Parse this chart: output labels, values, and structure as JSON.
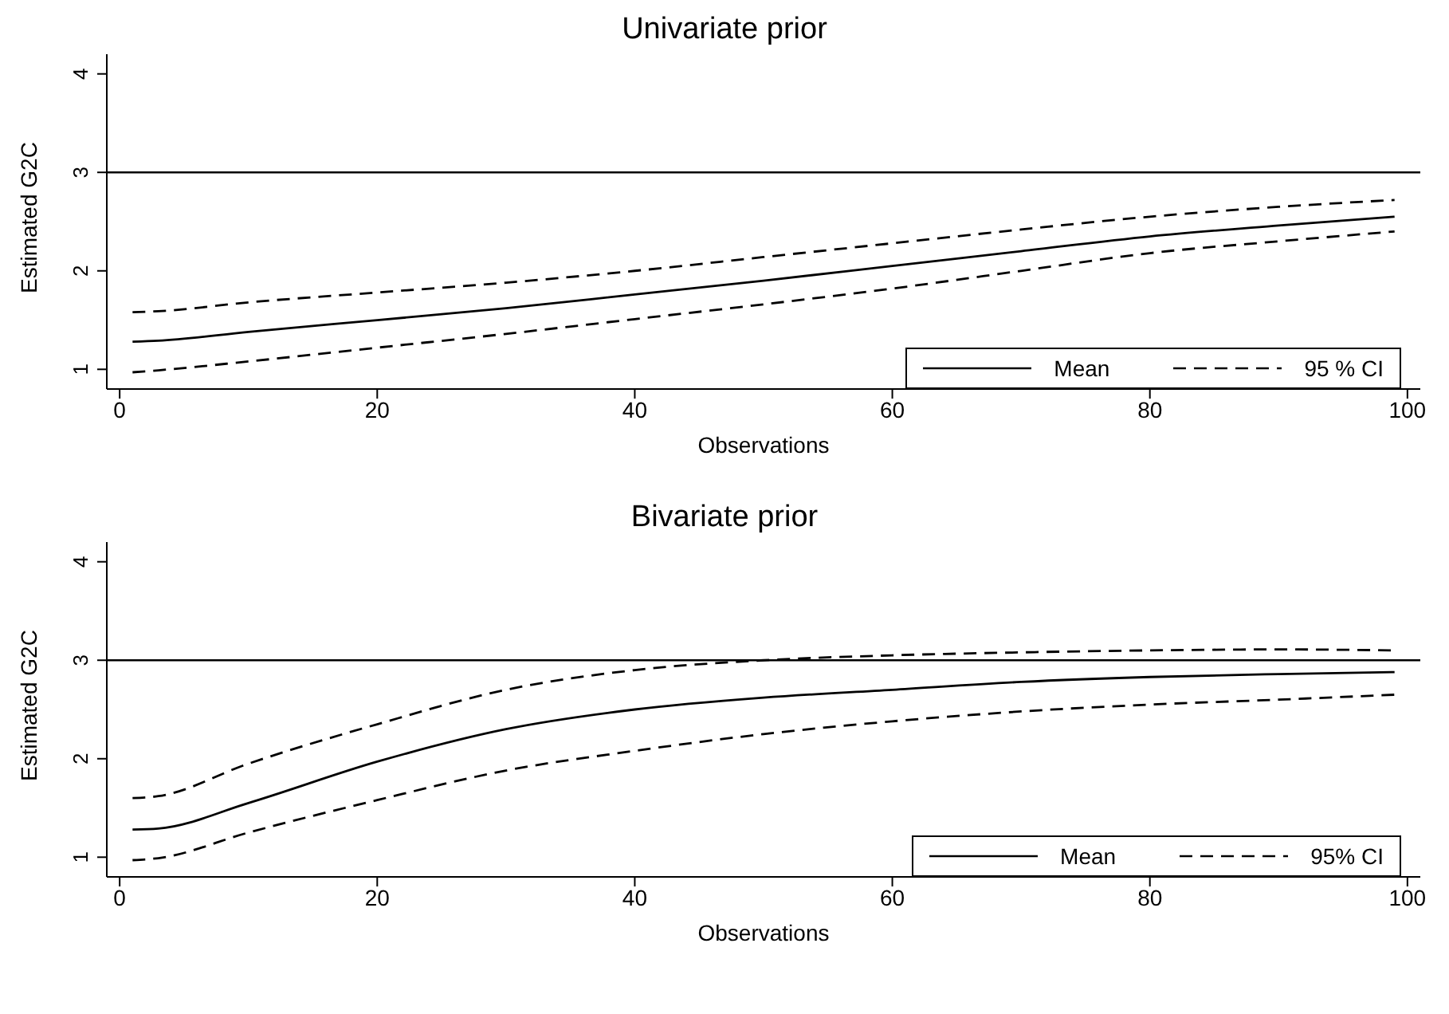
{
  "chart_data": [
    {
      "type": "line",
      "title": "Univariate prior",
      "xlabel": "Observations",
      "ylabel": "Estimated G2C",
      "x": [
        1,
        3,
        10,
        20,
        30,
        40,
        50,
        60,
        70,
        80,
        90,
        99
      ],
      "xlim": [
        -1,
        101
      ],
      "xticks": [
        0,
        20,
        40,
        60,
        80,
        100
      ],
      "ylim": [
        0.8,
        4.2
      ],
      "yticks": [
        1,
        2,
        3,
        4
      ],
      "grid": false,
      "marker": "none",
      "legend": "bottom right",
      "ref_lines": [
        {
          "axis": "y",
          "value": 3,
          "color": "#000000"
        }
      ],
      "series": [
        {
          "name": "Mean",
          "color": "#000000",
          "line_style": "solid",
          "values": [
            1.28,
            1.29,
            1.38,
            1.5,
            1.62,
            1.76,
            1.9,
            2.05,
            2.2,
            2.35,
            2.46,
            2.55
          ]
        },
        {
          "name": "95 % CI",
          "color": "#000000",
          "line_style": "dashed",
          "values": [
            1.58,
            1.59,
            1.68,
            1.78,
            1.88,
            2.0,
            2.14,
            2.28,
            2.42,
            2.55,
            2.65,
            2.72
          ]
        },
        {
          "color": "#000000",
          "line_style": "dashed",
          "values": [
            0.97,
            0.99,
            1.08,
            1.22,
            1.36,
            1.51,
            1.66,
            1.82,
            2.0,
            2.18,
            2.3,
            2.4
          ]
        }
      ]
    },
    {
      "type": "line",
      "title": "Bivariate prior",
      "xlabel": "Observations",
      "ylabel": "Estimated G2C",
      "x": [
        1,
        3,
        10,
        20,
        30,
        40,
        50,
        60,
        70,
        80,
        90,
        99
      ],
      "xlim": [
        -1,
        101
      ],
      "xticks": [
        0,
        20,
        40,
        60,
        80,
        100
      ],
      "ylim": [
        0.8,
        4.2
      ],
      "yticks": [
        1,
        2,
        3,
        4
      ],
      "grid": false,
      "marker": "none",
      "legend": "bottom right",
      "ref_lines": [
        {
          "axis": "y",
          "value": 3,
          "color": "#000000"
        }
      ],
      "series": [
        {
          "name": "Mean",
          "color": "#000000",
          "line_style": "solid",
          "values": [
            1.28,
            1.29,
            1.55,
            1.97,
            2.3,
            2.5,
            2.62,
            2.7,
            2.78,
            2.83,
            2.86,
            2.88
          ]
        },
        {
          "name": "95% CI",
          "color": "#000000",
          "line_style": "dashed",
          "values": [
            1.6,
            1.62,
            1.95,
            2.35,
            2.7,
            2.9,
            3.0,
            3.05,
            3.08,
            3.1,
            3.11,
            3.1
          ]
        },
        {
          "color": "#000000",
          "line_style": "dashed",
          "values": [
            0.97,
            0.99,
            1.25,
            1.58,
            1.88,
            2.08,
            2.25,
            2.38,
            2.48,
            2.55,
            2.6,
            2.65
          ]
        }
      ]
    }
  ]
}
